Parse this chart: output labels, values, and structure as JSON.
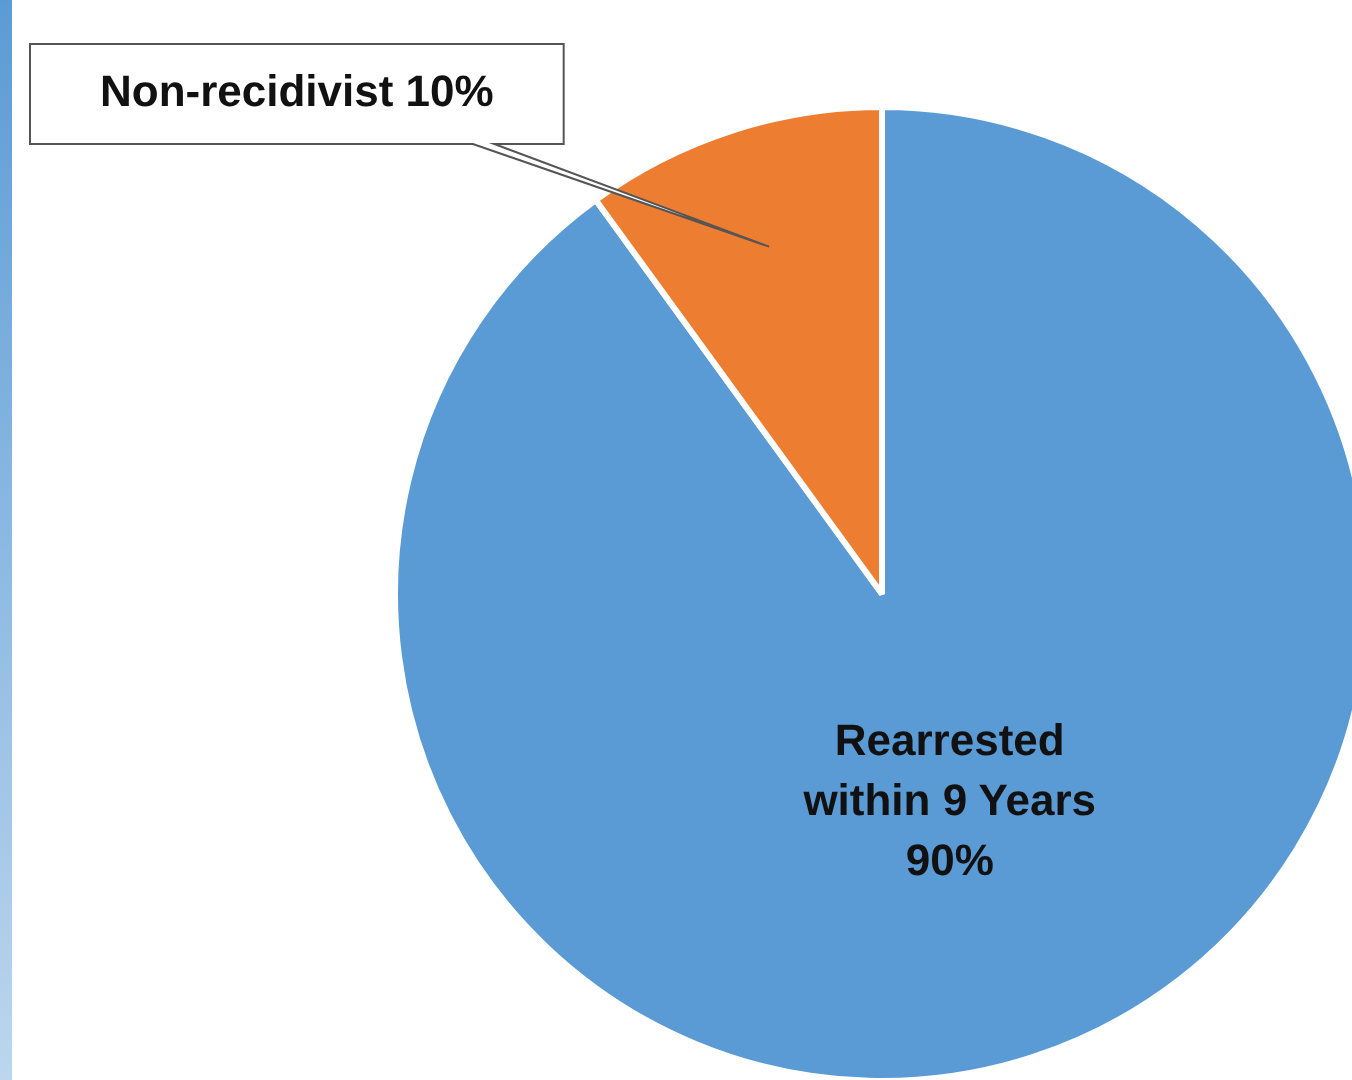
{
  "chart_data": {
    "type": "pie",
    "categories": [
      "Rearrested within 9 Years",
      "Non-recidivist"
    ],
    "values": [
      90,
      10
    ],
    "colors": [
      "#5b9bd5",
      "#ed7d31"
    ],
    "value_labels": [
      "90%",
      "10%"
    ],
    "legend": false
  }
}
